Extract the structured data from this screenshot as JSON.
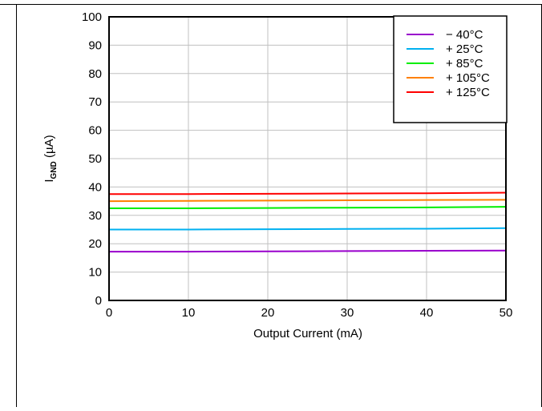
{
  "chart_data": {
    "type": "line",
    "xlabel": "Output Current (mA)",
    "ylabel": {
      "main": "I",
      "sub": "GND",
      "unit": " (µA)"
    },
    "xlim": [
      0,
      50
    ],
    "ylim": [
      0,
      100
    ],
    "xticks": [
      0,
      10,
      20,
      30,
      40,
      50
    ],
    "yticks": [
      0,
      10,
      20,
      30,
      40,
      50,
      60,
      70,
      80,
      90,
      100
    ],
    "grid": true,
    "legend_position": "top-right",
    "x": [
      0,
      10,
      20,
      30,
      40,
      50
    ],
    "series": [
      {
        "name": "− 40°C",
        "color": "#9900cc",
        "values": [
          17.2,
          17.2,
          17.3,
          17.4,
          17.5,
          17.6
        ]
      },
      {
        "name": "+ 25°C",
        "color": "#00b0f0",
        "values": [
          25.0,
          25.0,
          25.1,
          25.2,
          25.3,
          25.5
        ]
      },
      {
        "name": "+ 85°C",
        "color": "#00ee00",
        "values": [
          32.5,
          32.5,
          32.6,
          32.7,
          32.8,
          33.0
        ]
      },
      {
        "name": "+ 105°C",
        "color": "#ff8000",
        "values": [
          35.0,
          35.1,
          35.2,
          35.3,
          35.4,
          35.5
        ]
      },
      {
        "name": "+ 125°C",
        "color": "#ff0000",
        "values": [
          37.5,
          37.5,
          37.6,
          37.7,
          37.8,
          38.0
        ]
      }
    ]
  }
}
